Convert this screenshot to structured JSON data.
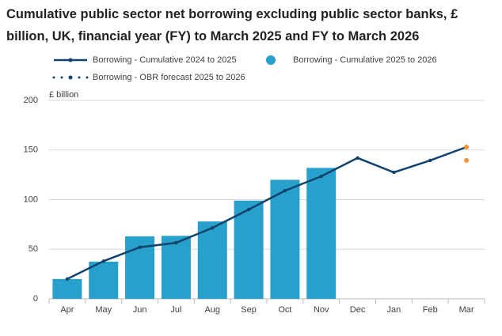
{
  "chart_data": {
    "type": "bar-line",
    "title": "Cumulative public sector net borrowing excluding public sector banks, £ billion, UK, financial year (FY) to March 2025 and FY to March 2026",
    "y_label": "£ billion",
    "categories": [
      "Apr",
      "May",
      "Jun",
      "Jul",
      "Aug",
      "Sep",
      "Oct",
      "Nov",
      "Dec",
      "Jan",
      "Feb",
      "Mar"
    ],
    "series": [
      {
        "name": "Borrowing - Cumulative 2024 to 2025",
        "kind": "line",
        "color": "#12436d",
        "end_marker_color": "#f0923a",
        "values": [
          20,
          38,
          52,
          56.5,
          71.5,
          90,
          109,
          123.5,
          142,
          127.5,
          139.5,
          153
        ]
      },
      {
        "name": "Borrowing - Cumulative 2025 to 2026",
        "kind": "bar",
        "color": "#27a0cc",
        "values": [
          20,
          37.5,
          63,
          63.5,
          78,
          99,
          120,
          132,
          null,
          null,
          null,
          null
        ]
      },
      {
        "name": "Borrowing - OBR forecast 2025 to 2026",
        "kind": "dots",
        "color": "#12436d",
        "marker_color": "#f0923a",
        "values": [
          null,
          null,
          null,
          null,
          null,
          null,
          null,
          null,
          null,
          null,
          null,
          139.5
        ]
      }
    ],
    "ylim": [
      0,
      200
    ],
    "yticks": [
      0,
      50,
      100,
      150,
      200
    ],
    "grid": true
  }
}
